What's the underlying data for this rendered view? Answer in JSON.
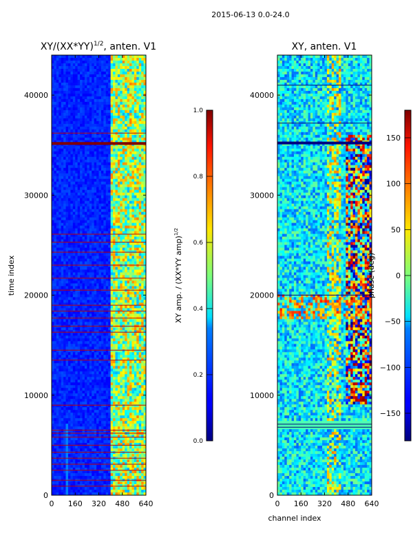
{
  "figure": {
    "suptitle": "2015-06-13 0.0-24.0"
  },
  "chart_data": [
    {
      "type": "heatmap",
      "title": "XY/(XX*YY)^1/2, anten. V1",
      "title_main": "XY/(XX*YY)",
      "title_exp": "1/2",
      "title_tail": ", anten. V1",
      "xlabel": "",
      "ylabel": "time index",
      "xlim": [
        0,
        640
      ],
      "ylim": [
        0,
        44000
      ],
      "xticks": [
        0,
        160,
        320,
        480,
        640
      ],
      "yticks": [
        0,
        10000,
        20000,
        30000,
        40000
      ],
      "colormap": "jet",
      "bright_channel_range": [
        400,
        640
      ],
      "saturated_rows": [
        35200,
        35300
      ],
      "flag_rows": [
        900,
        1500,
        2500,
        3100,
        3700,
        4300,
        5000,
        5800,
        6200,
        6500,
        9000,
        13500,
        14500,
        16300,
        16900,
        17700,
        18400,
        19000,
        20500,
        21700,
        23000,
        24300,
        25300,
        26100,
        36200
      ],
      "colorbar": {
        "label": "XY amp. / (XX*YY amp)^1/2",
        "label_main": "XY amp. / (XX*YY amp)",
        "label_exp": "1/2",
        "min": 0.0,
        "max": 1.0,
        "ticks": [
          "0.0",
          "0.2",
          "0.4",
          "0.6",
          "0.8",
          "1.0"
        ]
      }
    },
    {
      "type": "heatmap",
      "title": "XY, anten. V1",
      "xlabel": "channel index",
      "ylabel": "",
      "xlim": [
        0,
        640
      ],
      "ylim": [
        0,
        44000
      ],
      "xticks": [
        0,
        160,
        320,
        480,
        640
      ],
      "yticks": [
        0,
        10000,
        20000,
        30000,
        40000
      ],
      "colormap": "jet",
      "saturated_rows": [
        35200,
        35350
      ],
      "flag_rows": [
        6800,
        7100,
        20000,
        37200,
        41000
      ],
      "colorbar": {
        "label": "phase (deg)",
        "min": -180,
        "max": 180,
        "ticks": [
          "−150",
          "−100",
          "−50",
          "0",
          "50",
          "100",
          "150"
        ]
      }
    }
  ]
}
